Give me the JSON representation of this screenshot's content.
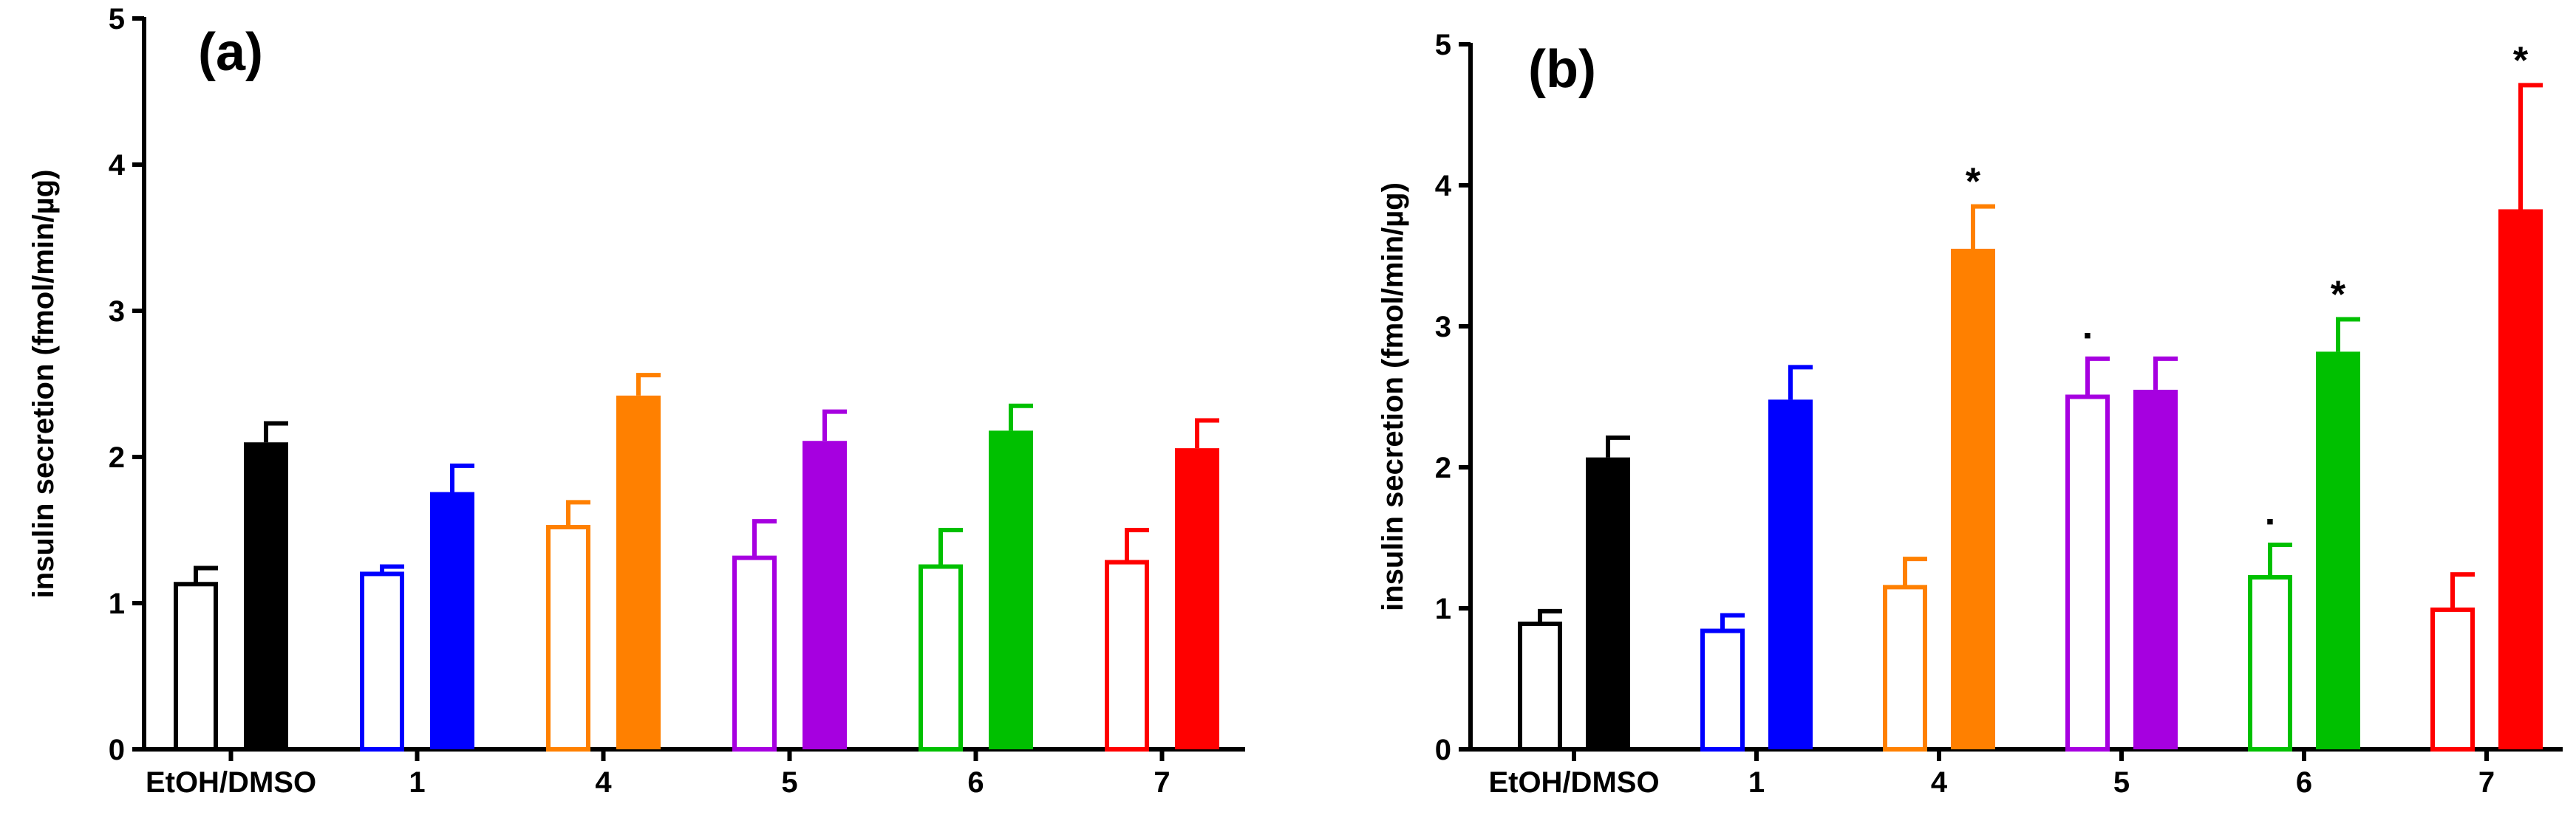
{
  "chart_data": [
    {
      "type": "bar",
      "panel_label": "(a)",
      "ylabel": "insulin secretion (fmol/min/µg)",
      "xlabel": "",
      "ylim": [
        0,
        5
      ],
      "yticks": [
        "0",
        "1",
        "2",
        "3",
        "4",
        "5"
      ],
      "categories": [
        "EtOH/DMSO",
        "1",
        "4",
        "5",
        "6",
        "7"
      ],
      "colors": [
        "#000000",
        "#0000ff",
        "#ff8000",
        "#a600e0",
        "#00c000",
        "#ff0000"
      ],
      "series": [
        {
          "name": "open",
          "style": "open",
          "values": [
            1.13,
            1.2,
            1.52,
            1.31,
            1.25,
            1.28
          ],
          "errors": [
            0.11,
            0.05,
            0.17,
            0.25,
            0.25,
            0.22
          ]
        },
        {
          "name": "filled",
          "style": "filled",
          "values": [
            2.1,
            1.76,
            2.42,
            2.11,
            2.18,
            2.06
          ],
          "errors": [
            0.13,
            0.18,
            0.14,
            0.2,
            0.17,
            0.19
          ]
        }
      ],
      "markers": []
    },
    {
      "type": "bar",
      "panel_label": "(b)",
      "ylabel": "insulin secretion (fmol/min/µg)",
      "xlabel": "",
      "ylim": [
        0,
        5
      ],
      "yticks": [
        "0",
        "1",
        "2",
        "3",
        "4",
        "5"
      ],
      "categories": [
        "EtOH/DMSO",
        "1",
        "4",
        "5",
        "6",
        "7"
      ],
      "colors": [
        "#000000",
        "#0000ff",
        "#ff8000",
        "#a600e0",
        "#00c000",
        "#ff0000"
      ],
      "series": [
        {
          "name": "open",
          "style": "open",
          "values": [
            0.89,
            0.84,
            1.15,
            2.5,
            1.22,
            0.99
          ],
          "errors": [
            0.09,
            0.11,
            0.2,
            0.27,
            0.23,
            0.25
          ]
        },
        {
          "name": "filled",
          "style": "filled",
          "values": [
            2.07,
            2.48,
            3.55,
            2.55,
            2.82,
            3.83
          ],
          "errors": [
            0.14,
            0.23,
            0.3,
            0.22,
            0.23,
            0.88
          ]
        }
      ],
      "markers": [
        {
          "category": 2,
          "series": 1,
          "symbol": "*"
        },
        {
          "category": 3,
          "series": 0,
          "symbol": "▪"
        },
        {
          "category": 4,
          "series": 0,
          "symbol": "▪"
        },
        {
          "category": 4,
          "series": 1,
          "symbol": "*"
        },
        {
          "category": 5,
          "series": 1,
          "symbol": "*"
        }
      ]
    }
  ]
}
